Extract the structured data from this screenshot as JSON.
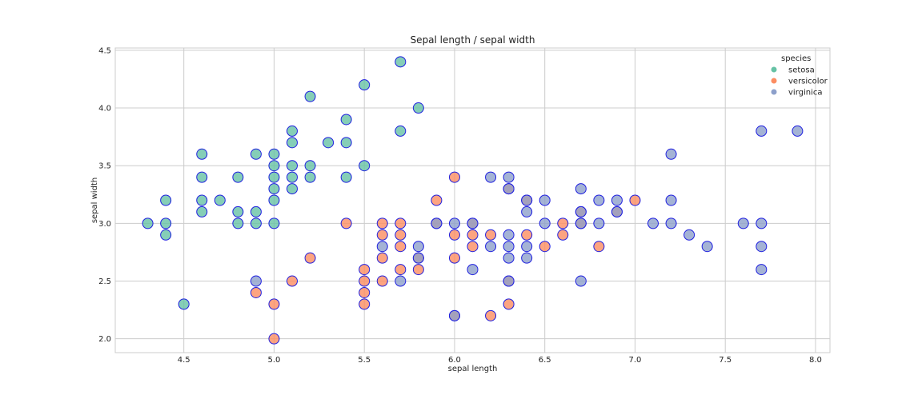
{
  "chart_data": {
    "type": "scatter",
    "title": "Sepal length / sepal width",
    "xlabel": "sepal length",
    "ylabel": "sepal width",
    "xlim": [
      4.12,
      8.08
    ],
    "ylim": [
      1.88,
      4.52
    ],
    "xticks": [
      4.5,
      5.0,
      5.5,
      6.0,
      6.5,
      7.0,
      7.5,
      8.0
    ],
    "xtick_labels": [
      "4.5",
      "5.0",
      "5.5",
      "6.0",
      "6.5",
      "7.0",
      "7.5",
      "8.0"
    ],
    "yticks": [
      2.0,
      2.5,
      3.0,
      3.5,
      4.0,
      4.5
    ],
    "ytick_labels": [
      "2.0",
      "2.5",
      "3.0",
      "3.5",
      "4.0",
      "4.5"
    ],
    "grid": true,
    "marker_edge_color": "#1f1fe0",
    "legend": {
      "title": "species",
      "placement": "top-right"
    },
    "series": [
      {
        "name": "setosa",
        "color": "#66c2a5",
        "points": [
          [
            4.3,
            3.0
          ],
          [
            4.4,
            2.9
          ],
          [
            4.4,
            3.0
          ],
          [
            4.4,
            3.2
          ],
          [
            4.5,
            2.3
          ],
          [
            4.6,
            3.1
          ],
          [
            4.6,
            3.2
          ],
          [
            4.6,
            3.4
          ],
          [
            4.6,
            3.6
          ],
          [
            4.7,
            3.2
          ],
          [
            4.8,
            3.0
          ],
          [
            4.8,
            3.1
          ],
          [
            4.8,
            3.4
          ],
          [
            4.9,
            3.0
          ],
          [
            4.9,
            3.1
          ],
          [
            4.9,
            3.6
          ],
          [
            5.0,
            3.0
          ],
          [
            5.0,
            3.2
          ],
          [
            5.0,
            3.3
          ],
          [
            5.0,
            3.4
          ],
          [
            5.0,
            3.5
          ],
          [
            5.0,
            3.6
          ],
          [
            5.1,
            3.3
          ],
          [
            5.1,
            3.4
          ],
          [
            5.1,
            3.5
          ],
          [
            5.1,
            3.7
          ],
          [
            5.1,
            3.8
          ],
          [
            5.2,
            3.4
          ],
          [
            5.2,
            3.5
          ],
          [
            5.2,
            4.1
          ],
          [
            5.3,
            3.7
          ],
          [
            5.4,
            3.4
          ],
          [
            5.4,
            3.7
          ],
          [
            5.4,
            3.9
          ],
          [
            5.5,
            3.5
          ],
          [
            5.5,
            4.2
          ],
          [
            5.7,
            3.8
          ],
          [
            5.7,
            4.4
          ],
          [
            5.8,
            4.0
          ]
        ]
      },
      {
        "name": "versicolor",
        "color": "#fc8d62",
        "points": [
          [
            4.9,
            2.4
          ],
          [
            5.0,
            2.0
          ],
          [
            5.0,
            2.3
          ],
          [
            5.1,
            2.5
          ],
          [
            5.2,
            2.7
          ],
          [
            5.4,
            3.0
          ],
          [
            5.5,
            2.3
          ],
          [
            5.5,
            2.4
          ],
          [
            5.5,
            2.5
          ],
          [
            5.5,
            2.6
          ],
          [
            5.6,
            2.5
          ],
          [
            5.6,
            2.7
          ],
          [
            5.6,
            2.9
          ],
          [
            5.6,
            3.0
          ],
          [
            5.7,
            2.6
          ],
          [
            5.7,
            2.8
          ],
          [
            5.7,
            2.9
          ],
          [
            5.7,
            3.0
          ],
          [
            5.8,
            2.6
          ],
          [
            5.8,
            2.7
          ],
          [
            5.9,
            3.0
          ],
          [
            5.9,
            3.2
          ],
          [
            6.0,
            2.2
          ],
          [
            6.0,
            2.7
          ],
          [
            6.0,
            2.9
          ],
          [
            6.0,
            3.4
          ],
          [
            6.1,
            2.8
          ],
          [
            6.1,
            2.9
          ],
          [
            6.1,
            3.0
          ],
          [
            6.2,
            2.2
          ],
          [
            6.2,
            2.9
          ],
          [
            6.3,
            2.3
          ],
          [
            6.3,
            2.5
          ],
          [
            6.3,
            3.3
          ],
          [
            6.4,
            2.9
          ],
          [
            6.4,
            3.2
          ],
          [
            6.5,
            2.8
          ],
          [
            6.6,
            2.9
          ],
          [
            6.6,
            3.0
          ],
          [
            6.7,
            3.0
          ],
          [
            6.7,
            3.1
          ],
          [
            6.8,
            2.8
          ],
          [
            6.9,
            3.1
          ],
          [
            7.0,
            3.2
          ]
        ]
      },
      {
        "name": "virginica",
        "color": "#8da0cb",
        "points": [
          [
            4.9,
            2.5
          ],
          [
            5.6,
            2.8
          ],
          [
            5.7,
            2.5
          ],
          [
            5.8,
            2.7
          ],
          [
            5.8,
            2.8
          ],
          [
            5.9,
            3.0
          ],
          [
            6.0,
            2.2
          ],
          [
            6.0,
            3.0
          ],
          [
            6.1,
            2.6
          ],
          [
            6.1,
            3.0
          ],
          [
            6.2,
            2.8
          ],
          [
            6.2,
            3.4
          ],
          [
            6.3,
            2.5
          ],
          [
            6.3,
            2.7
          ],
          [
            6.3,
            2.8
          ],
          [
            6.3,
            2.9
          ],
          [
            6.3,
            3.3
          ],
          [
            6.3,
            3.4
          ],
          [
            6.4,
            2.7
          ],
          [
            6.4,
            2.8
          ],
          [
            6.4,
            3.1
          ],
          [
            6.4,
            3.2
          ],
          [
            6.5,
            3.0
          ],
          [
            6.5,
            3.2
          ],
          [
            6.7,
            2.5
          ],
          [
            6.7,
            3.0
          ],
          [
            6.7,
            3.1
          ],
          [
            6.7,
            3.3
          ],
          [
            6.8,
            3.0
          ],
          [
            6.8,
            3.2
          ],
          [
            6.9,
            3.1
          ],
          [
            6.9,
            3.2
          ],
          [
            7.1,
            3.0
          ],
          [
            7.2,
            3.0
          ],
          [
            7.2,
            3.2
          ],
          [
            7.2,
            3.6
          ],
          [
            7.3,
            2.9
          ],
          [
            7.4,
            2.8
          ],
          [
            7.6,
            3.0
          ],
          [
            7.7,
            2.6
          ],
          [
            7.7,
            2.8
          ],
          [
            7.7,
            3.0
          ],
          [
            7.7,
            3.8
          ],
          [
            7.9,
            3.8
          ]
        ]
      }
    ]
  }
}
